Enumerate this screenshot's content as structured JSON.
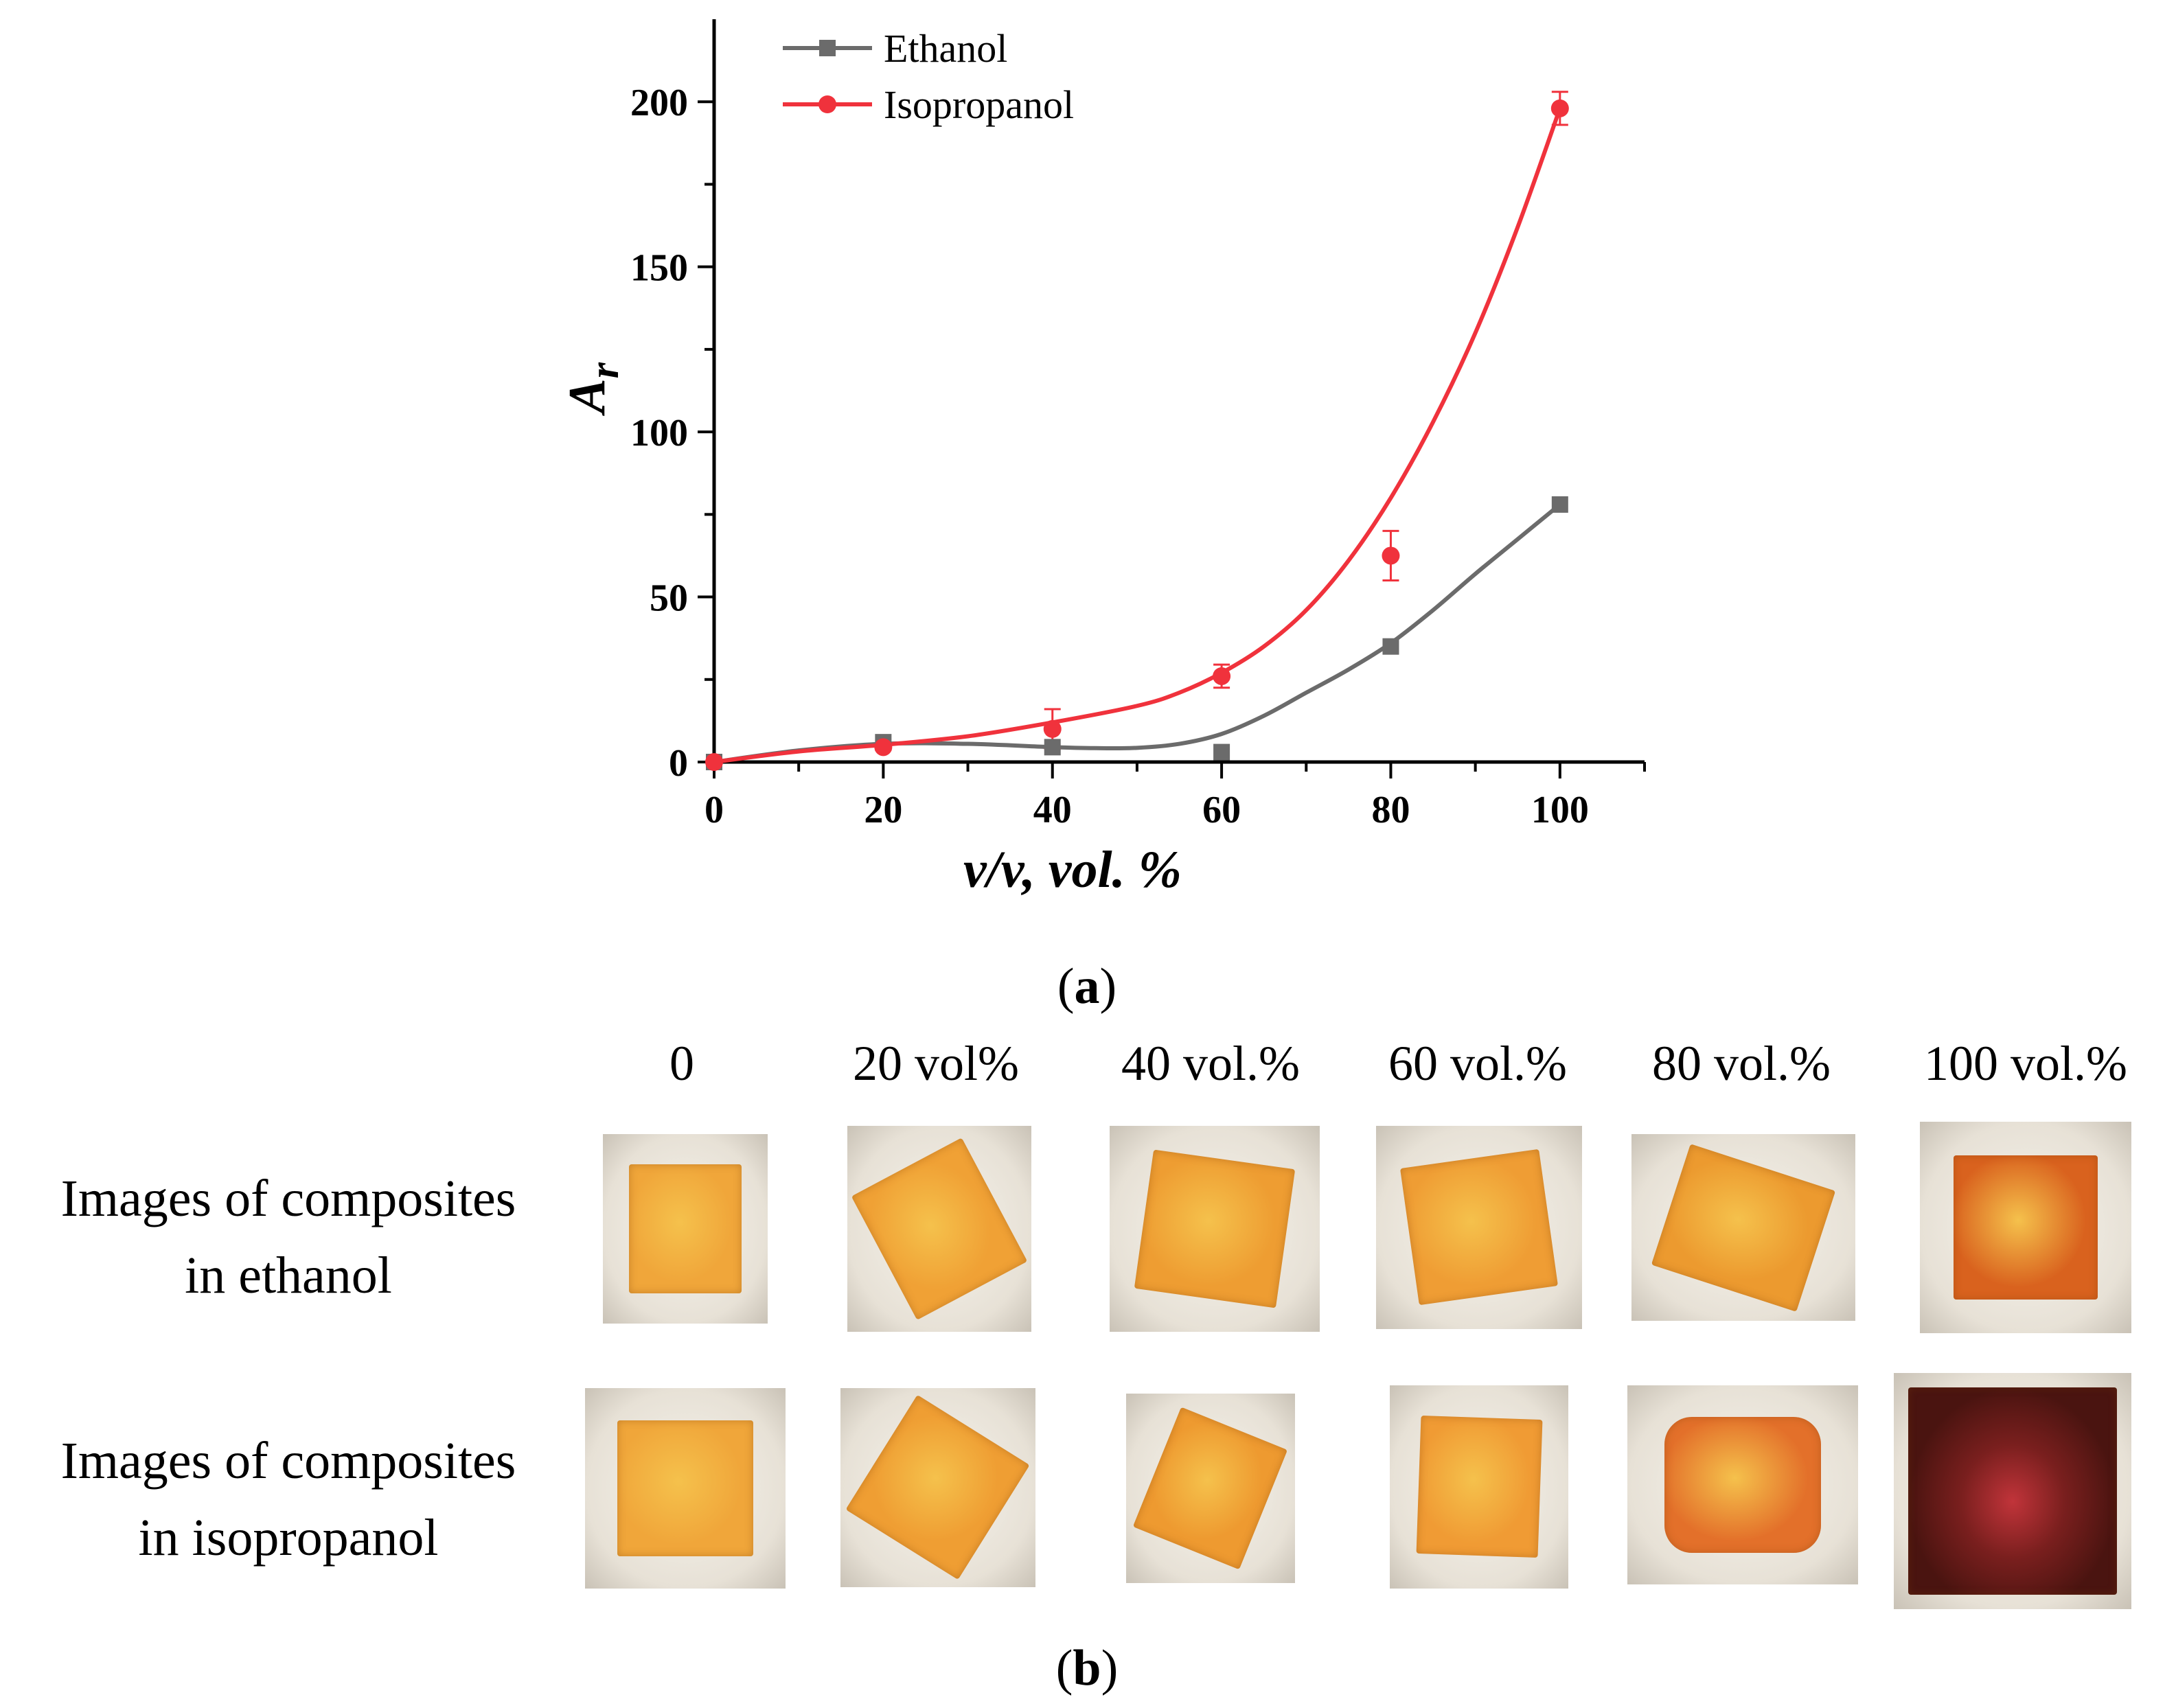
{
  "chart_data": {
    "type": "scatter",
    "panel_label": "a",
    "xlabel": "v/v, vol. %",
    "ylabel": "A",
    "ylabel_subscript": "r",
    "xlim": [
      0,
      110
    ],
    "ylim": [
      0,
      225
    ],
    "x_ticks": [
      0,
      20,
      40,
      60,
      80,
      100
    ],
    "y_ticks": [
      0,
      50,
      100,
      150,
      200
    ],
    "legend_position": "top-left",
    "grid": false,
    "series": [
      {
        "name": "Ethanol",
        "color": "#6b6b6b",
        "marker": "square",
        "x": [
          0,
          20,
          40,
          60,
          80,
          100
        ],
        "y": [
          0,
          6,
          4.5,
          3,
          35,
          78
        ],
        "fit_x": [
          0,
          10,
          20,
          30,
          40,
          45,
          50,
          55,
          60,
          65,
          70,
          75,
          80,
          85,
          90,
          95,
          100
        ],
        "fit_y": [
          0,
          3.5,
          5.5,
          5.5,
          4.5,
          4.2,
          4.3,
          5.5,
          8.5,
          14,
          21,
          28,
          36,
          46,
          57,
          67.5,
          78
        ]
      },
      {
        "name": "Isopropanol",
        "color": "#f0323c",
        "marker": "circle",
        "x": [
          0,
          20,
          40,
          60,
          80,
          100
        ],
        "y": [
          0,
          4.5,
          10,
          26,
          62.5,
          198
        ],
        "yerr": [
          0,
          0.8,
          6,
          3.5,
          7.5,
          5
        ],
        "fit_x": [
          0,
          10,
          20,
          30,
          40,
          50,
          55,
          60,
          65,
          70,
          75,
          80,
          85,
          90,
          95,
          100
        ],
        "fit_y": [
          0,
          3.2,
          5.2,
          7.8,
          12,
          17,
          21,
          27,
          35,
          46,
          61,
          80,
          103,
          130,
          162,
          198
        ]
      }
    ]
  },
  "images_panel": {
    "panel_label": "b",
    "columns": [
      "0",
      "20 vol%",
      "40 vol.%",
      "60 vol.%",
      "80 vol.%",
      "100 vol.%"
    ],
    "rows": [
      {
        "label_line1": "Images of composites",
        "label_line2": "in ethanol",
        "sample_colors": [
          "#f0a63a",
          "#f0a135",
          "#ee9d32",
          "#ef9d34",
          "#ec9a2f",
          "#d9621e"
        ]
      },
      {
        "label_line1": "Images of composites",
        "label_line2": "in isopropanol",
        "sample_colors": [
          "#f0a63a",
          "#ef9e33",
          "#ee9a30",
          "#f09b34",
          "#e3702a",
          "#4a1410"
        ]
      }
    ]
  }
}
